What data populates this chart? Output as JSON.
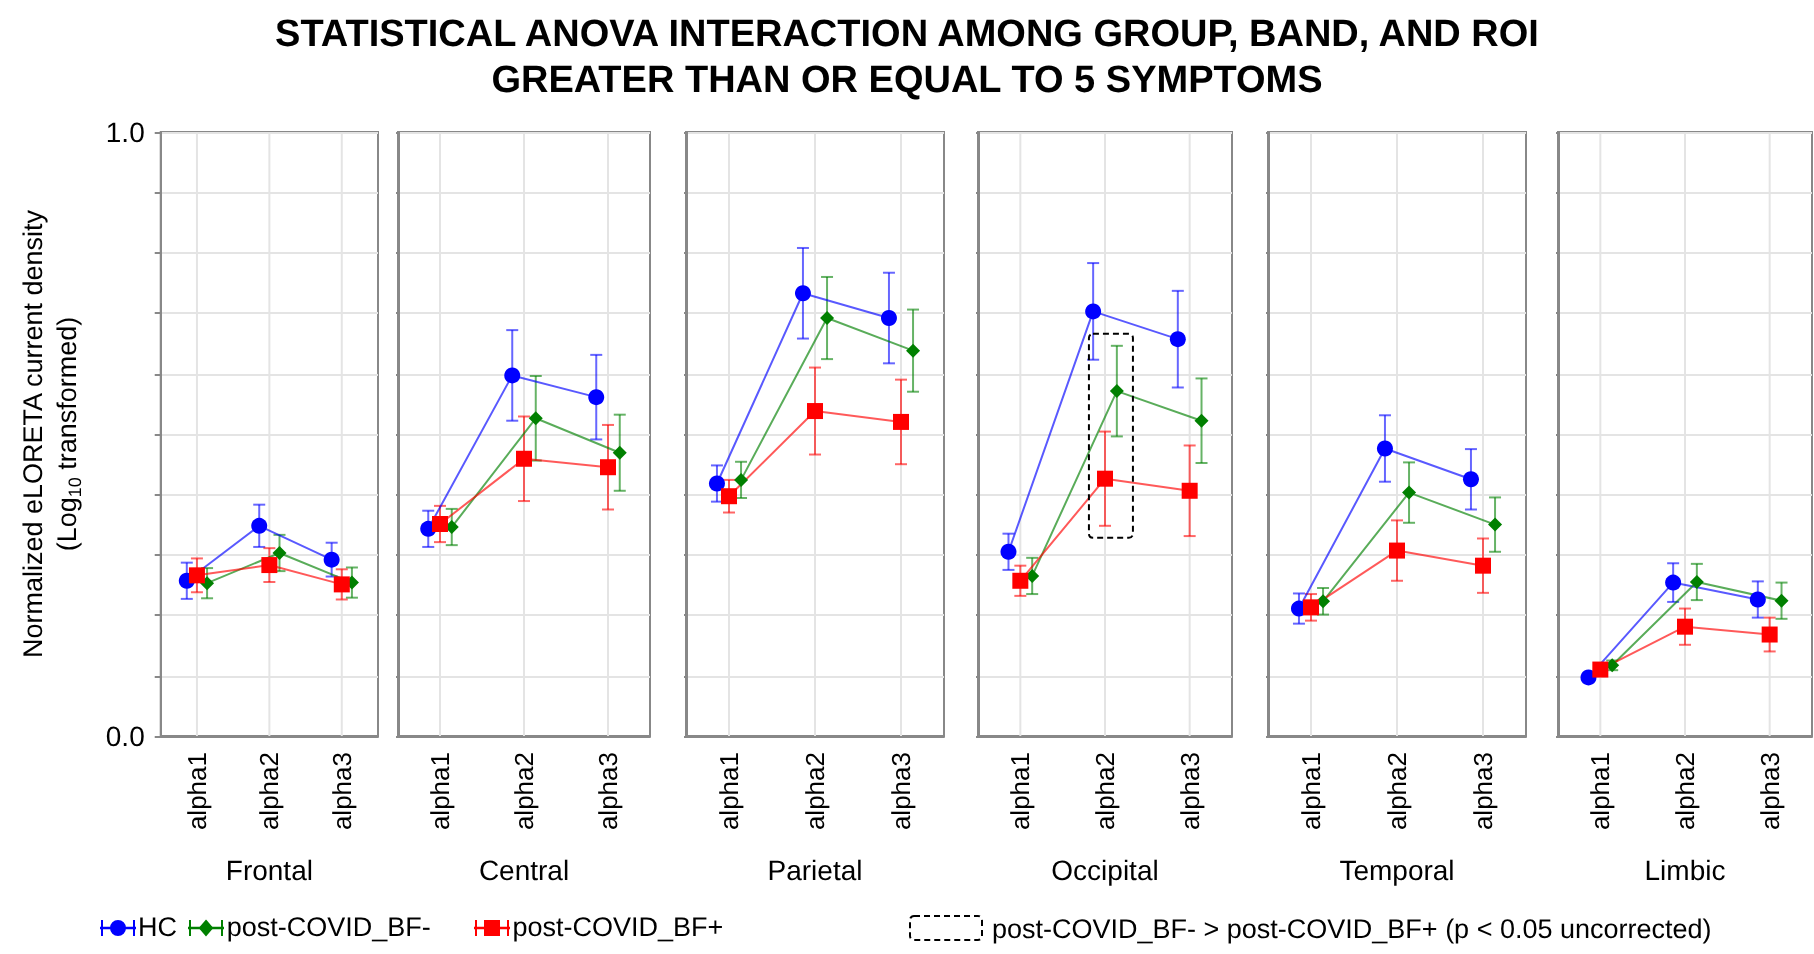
{
  "chart_data": [
    {
      "type": "line",
      "title": "STATISTICAL ANOVA INTERACTION AMONG GROUP, BAND, AND ROI\nGREATER THAN OR EQUAL TO 5 SYMPTOMS",
      "xlabel": "Frontal",
      "ylabel": "Normalized eLORETA current density\n(Log$_{10}$ transformed)",
      "categories": [
        "alpha1",
        "alpha2",
        "alpha3"
      ],
      "ylim": [
        0,
        1
      ],
      "yticks": [
        {
          "value": 0,
          "label": "0.0"
        },
        {
          "value": 0.1,
          "label": null
        },
        {
          "value": 0.2,
          "label": null
        },
        {
          "value": 0.3,
          "label": null
        },
        {
          "value": 0.4,
          "label": null
        },
        {
          "value": 0.5,
          "label": null
        },
        {
          "value": 0.6,
          "label": null
        },
        {
          "value": 0.7,
          "label": null
        },
        {
          "value": 0.8,
          "label": null
        },
        {
          "value": 0.9,
          "label": null
        },
        {
          "value": 1,
          "label": "1.0"
        }
      ],
      "grid": true,
      "legend": "bottom",
      "line_style": "solid",
      "series": [
        {
          "name": "HC",
          "color": "#0000ff",
          "marker": "circle",
          "values": [
            0.257,
            0.348,
            0.292
          ],
          "errors": [
            0.03,
            0.035,
            0.028
          ]
        },
        {
          "name": "post-COVID_BF-",
          "color": "#008000",
          "marker": "diamond",
          "values": [
            0.253,
            0.303,
            0.254
          ],
          "errors": [
            0.025,
            0.03,
            0.025
          ]
        },
        {
          "name": "post-COVID_BF+",
          "color": "#ff0000",
          "marker": "square",
          "values": [
            0.266,
            0.283,
            0.251
          ],
          "errors": [
            0.028,
            0.028,
            0.025
          ]
        }
      ]
    },
    {
      "type": "line",
      "xlabel": "Central",
      "categories": [
        "alpha1",
        "alpha2",
        "alpha3"
      ],
      "ylim": [
        0,
        1
      ],
      "yticks": [
        0,
        0.1,
        0.2,
        0.3,
        0.4,
        0.5,
        0.6,
        0.7,
        0.8,
        0.9,
        1
      ],
      "tick_labels": "x",
      "grid": true,
      "line_style": "solid",
      "series": [
        {
          "color": "#0000ff",
          "marker": "circle",
          "values": [
            0.343,
            0.597,
            0.561
          ],
          "errors": [
            0.03,
            0.075,
            0.07
          ]
        },
        {
          "color": "#008000",
          "marker": "diamond",
          "values": [
            0.346,
            0.526,
            0.469
          ],
          "errors": [
            0.03,
            0.07,
            0.063
          ]
        },
        {
          "color": "#ff0000",
          "marker": "square",
          "values": [
            0.351,
            0.459,
            0.445
          ],
          "errors": [
            0.03,
            0.07,
            0.07
          ]
        }
      ]
    },
    {
      "type": "line",
      "xlabel": "Parietal",
      "categories": [
        "alpha1",
        "alpha2",
        "alpha3"
      ],
      "ylim": [
        0,
        1
      ],
      "yticks": [
        0,
        0.1,
        0.2,
        0.3,
        0.4,
        0.5,
        0.6,
        0.7,
        0.8,
        0.9,
        1
      ],
      "tick_labels": "x",
      "grid": true,
      "line_style": "solid",
      "series": [
        {
          "color": "#0000ff",
          "marker": "circle",
          "values": [
            0.418,
            0.733,
            0.692
          ],
          "errors": [
            0.03,
            0.075,
            0.075
          ]
        },
        {
          "color": "#008000",
          "marker": "diamond",
          "values": [
            0.424,
            0.692,
            0.638
          ],
          "errors": [
            0.03,
            0.068,
            0.068
          ]
        },
        {
          "color": "#ff0000",
          "marker": "square",
          "values": [
            0.397,
            0.538,
            0.52
          ],
          "errors": [
            0.027,
            0.072,
            0.07
          ]
        }
      ]
    },
    {
      "type": "line",
      "xlabel": "Occipital",
      "categories": [
        "alpha1",
        "alpha2",
        "alpha3"
      ],
      "ylim": [
        0,
        1
      ],
      "yticks": [
        0,
        0.1,
        0.2,
        0.3,
        0.4,
        0.5,
        0.6,
        0.7,
        0.8,
        0.9,
        1
      ],
      "tick_labels": "x",
      "grid": true,
      "line_style": "solid",
      "annotations": [
        "post-COVID_BF- > post-COVID_BF+ (p < 0.05 uncorrected)"
      ],
      "series": [
        {
          "color": "#0000ff",
          "marker": "circle",
          "values": [
            0.305,
            0.703,
            0.657
          ],
          "errors": [
            0.03,
            0.08,
            0.08
          ]
        },
        {
          "color": "#008000",
          "marker": "diamond",
          "values": [
            0.265,
            0.571,
            0.522
          ],
          "errors": [
            0.03,
            0.075,
            0.07
          ]
        },
        {
          "color": "#ff0000",
          "marker": "square",
          "values": [
            0.257,
            0.426,
            0.406
          ],
          "errors": [
            0.025,
            0.078,
            0.075
          ]
        }
      ]
    },
    {
      "type": "line",
      "xlabel": "Temporal",
      "categories": [
        "alpha1",
        "alpha2",
        "alpha3"
      ],
      "ylim": [
        0,
        1
      ],
      "yticks": [
        0,
        0.1,
        0.2,
        0.3,
        0.4,
        0.5,
        0.6,
        0.7,
        0.8,
        0.9,
        1
      ],
      "tick_labels": "x",
      "grid": true,
      "line_style": "solid",
      "series": [
        {
          "color": "#0000ff",
          "marker": "circle",
          "values": [
            0.211,
            0.476,
            0.425
          ],
          "errors": [
            0.025,
            0.055,
            0.05
          ]
        },
        {
          "color": "#008000",
          "marker": "diamond",
          "values": [
            0.223,
            0.403,
            0.35
          ],
          "errors": [
            0.022,
            0.05,
            0.045
          ]
        },
        {
          "color": "#ff0000",
          "marker": "square",
          "values": [
            0.213,
            0.307,
            0.282
          ],
          "errors": [
            0.022,
            0.05,
            0.045
          ]
        }
      ]
    },
    {
      "type": "line",
      "xlabel": "Limbic",
      "categories": [
        "alpha1",
        "alpha2",
        "alpha3"
      ],
      "ylim": [
        0,
        1
      ],
      "yticks": [
        0,
        0.1,
        0.2,
        0.3,
        0.4,
        0.5,
        0.6,
        0.7,
        0.8,
        0.9,
        1
      ],
      "tick_labels": "x",
      "grid": true,
      "line_style": "solid",
      "series": [
        {
          "color": "#0000ff",
          "marker": "circle",
          "values": [
            0.097,
            0.254,
            0.226
          ],
          "errors": [
            0.005,
            0.032,
            0.03
          ]
        },
        {
          "color": "#008000",
          "marker": "diamond",
          "values": [
            0.117,
            0.255,
            0.224
          ],
          "errors": [
            0.008,
            0.03,
            0.03
          ]
        },
        {
          "color": "#ff0000",
          "marker": "square",
          "values": [
            0.11,
            0.181,
            0.168
          ],
          "errors": [
            0.008,
            0.03,
            0.028
          ]
        }
      ]
    }
  ]
}
